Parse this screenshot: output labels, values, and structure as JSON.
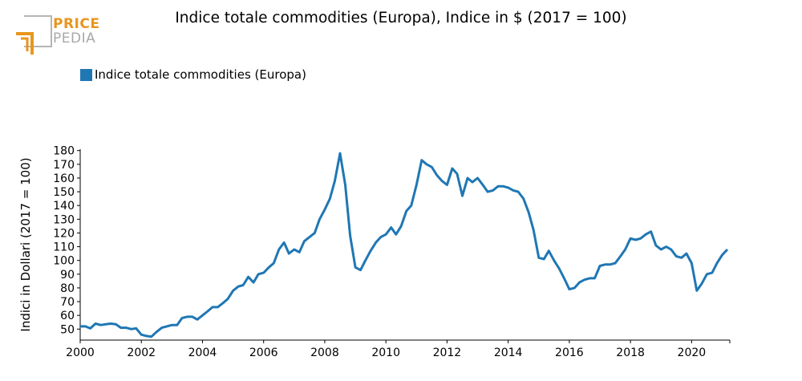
{
  "brand": {
    "top": "PRICE",
    "bottom": "PEDIA"
  },
  "colors": {
    "series": "#1f77b4",
    "brand_orange": "#e8961e",
    "brand_gray": "#a8a8a8"
  },
  "chart_data": {
    "type": "line",
    "title": "Indice totale commodities (Europa), Indice in $ (2017 = 100)",
    "xlabel": "",
    "ylabel": "Indici in Dollari (2017 = 100)",
    "xlim": [
      2000,
      2021.25
    ],
    "ylim": [
      42,
      181
    ],
    "xticks": [
      2000,
      2002,
      2004,
      2006,
      2008,
      2010,
      2012,
      2014,
      2016,
      2018,
      2020
    ],
    "yticks": [
      50,
      60,
      70,
      80,
      90,
      100,
      110,
      120,
      130,
      140,
      150,
      160,
      170,
      180
    ],
    "grid": false,
    "legend_position": "top-left",
    "series": [
      {
        "name": "Indice totale commodities (Europa)",
        "color": "#1f77b4",
        "points": [
          [
            2000.0,
            52
          ],
          [
            2000.17,
            52
          ],
          [
            2000.33,
            50.5
          ],
          [
            2000.5,
            54
          ],
          [
            2000.67,
            53
          ],
          [
            2000.83,
            53.5
          ],
          [
            2001.0,
            54
          ],
          [
            2001.17,
            53.5
          ],
          [
            2001.33,
            51
          ],
          [
            2001.5,
            51
          ],
          [
            2001.67,
            50
          ],
          [
            2001.83,
            50.5
          ],
          [
            2002.0,
            46
          ],
          [
            2002.17,
            45
          ],
          [
            2002.33,
            44.5
          ],
          [
            2002.5,
            48
          ],
          [
            2002.67,
            51
          ],
          [
            2002.83,
            52
          ],
          [
            2003.0,
            53
          ],
          [
            2003.17,
            53
          ],
          [
            2003.33,
            58
          ],
          [
            2003.5,
            59
          ],
          [
            2003.67,
            59
          ],
          [
            2003.83,
            57
          ],
          [
            2004.0,
            60
          ],
          [
            2004.17,
            63
          ],
          [
            2004.33,
            66
          ],
          [
            2004.5,
            66
          ],
          [
            2004.67,
            69
          ],
          [
            2004.83,
            72
          ],
          [
            2005.0,
            78
          ],
          [
            2005.17,
            81
          ],
          [
            2005.33,
            82
          ],
          [
            2005.5,
            88
          ],
          [
            2005.67,
            84
          ],
          [
            2005.83,
            90
          ],
          [
            2006.0,
            91
          ],
          [
            2006.17,
            95
          ],
          [
            2006.33,
            98
          ],
          [
            2006.5,
            108
          ],
          [
            2006.67,
            113
          ],
          [
            2006.83,
            105
          ],
          [
            2007.0,
            108
          ],
          [
            2007.17,
            106
          ],
          [
            2007.33,
            114
          ],
          [
            2007.5,
            117
          ],
          [
            2007.67,
            120
          ],
          [
            2007.83,
            130
          ],
          [
            2008.0,
            137
          ],
          [
            2008.17,
            145
          ],
          [
            2008.33,
            158
          ],
          [
            2008.5,
            178
          ],
          [
            2008.67,
            155
          ],
          [
            2008.83,
            118
          ],
          [
            2009.0,
            95
          ],
          [
            2009.17,
            93
          ],
          [
            2009.33,
            100
          ],
          [
            2009.5,
            107
          ],
          [
            2009.67,
            113
          ],
          [
            2009.83,
            117
          ],
          [
            2010.0,
            119
          ],
          [
            2010.17,
            124
          ],
          [
            2010.33,
            119
          ],
          [
            2010.5,
            125
          ],
          [
            2010.67,
            136
          ],
          [
            2010.83,
            140
          ],
          [
            2011.0,
            155
          ],
          [
            2011.17,
            173
          ],
          [
            2011.33,
            170
          ],
          [
            2011.5,
            168
          ],
          [
            2011.67,
            162
          ],
          [
            2011.83,
            158
          ],
          [
            2012.0,
            155
          ],
          [
            2012.17,
            167
          ],
          [
            2012.33,
            163
          ],
          [
            2012.5,
            147
          ],
          [
            2012.67,
            160
          ],
          [
            2012.83,
            157
          ],
          [
            2013.0,
            160
          ],
          [
            2013.17,
            155
          ],
          [
            2013.33,
            150
          ],
          [
            2013.5,
            151
          ],
          [
            2013.67,
            154
          ],
          [
            2013.83,
            154
          ],
          [
            2014.0,
            153
          ],
          [
            2014.17,
            151
          ],
          [
            2014.33,
            150
          ],
          [
            2014.5,
            145
          ],
          [
            2014.67,
            135
          ],
          [
            2014.83,
            122
          ],
          [
            2015.0,
            102
          ],
          [
            2015.17,
            101
          ],
          [
            2015.33,
            107
          ],
          [
            2015.5,
            100
          ],
          [
            2015.67,
            94
          ],
          [
            2015.83,
            87
          ],
          [
            2016.0,
            79
          ],
          [
            2016.17,
            80
          ],
          [
            2016.33,
            84
          ],
          [
            2016.5,
            86
          ],
          [
            2016.67,
            87
          ],
          [
            2016.83,
            87
          ],
          [
            2017.0,
            96
          ],
          [
            2017.17,
            97
          ],
          [
            2017.33,
            97
          ],
          [
            2017.5,
            98
          ],
          [
            2017.67,
            103
          ],
          [
            2017.83,
            108
          ],
          [
            2018.0,
            116
          ],
          [
            2018.17,
            115
          ],
          [
            2018.33,
            116
          ],
          [
            2018.5,
            119
          ],
          [
            2018.67,
            121
          ],
          [
            2018.83,
            111
          ],
          [
            2019.0,
            108
          ],
          [
            2019.17,
            110
          ],
          [
            2019.33,
            108
          ],
          [
            2019.5,
            103
          ],
          [
            2019.67,
            102
          ],
          [
            2019.83,
            105
          ],
          [
            2020.0,
            98
          ],
          [
            2020.17,
            78
          ],
          [
            2020.33,
            83
          ],
          [
            2020.5,
            90
          ],
          [
            2020.67,
            91
          ],
          [
            2020.83,
            98
          ],
          [
            2021.0,
            104
          ],
          [
            2021.17,
            108
          ]
        ]
      }
    ]
  }
}
